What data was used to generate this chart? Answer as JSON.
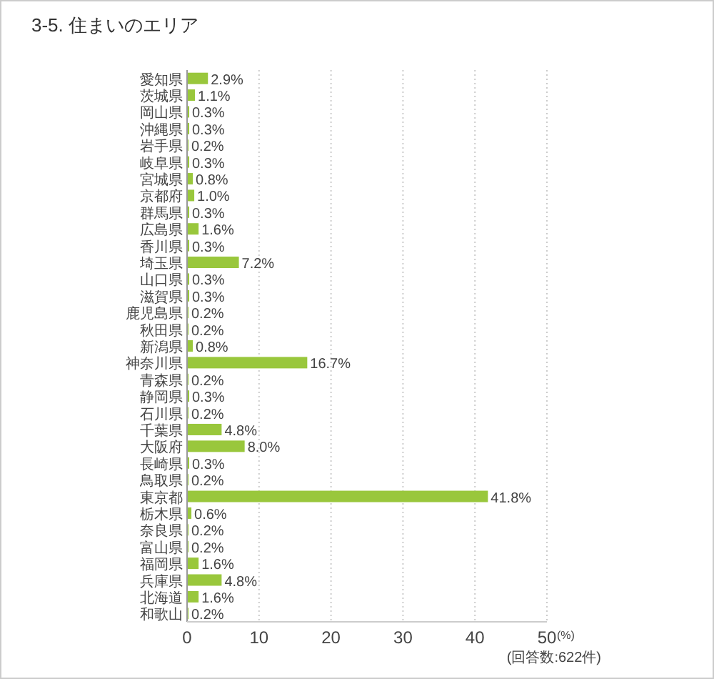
{
  "chart_data": {
    "type": "bar",
    "orientation": "horizontal",
    "title": "3-5. 住まいのエリア",
    "xlabel": "(%)",
    "categories": [
      "愛知県",
      "茨城県",
      "岡山県",
      "沖縄県",
      "岩手県",
      "岐阜県",
      "宮城県",
      "京都府",
      "群馬県",
      "広島県",
      "香川県",
      "埼玉県",
      "山口県",
      "滋賀県",
      "鹿児島県",
      "秋田県",
      "新潟県",
      "神奈川県",
      "青森県",
      "静岡県",
      "石川県",
      "千葉県",
      "大阪府",
      "長崎県",
      "鳥取県",
      "東京都",
      "栃木県",
      "奈良県",
      "富山県",
      "福岡県",
      "兵庫県",
      "北海道",
      "和歌山"
    ],
    "values": [
      2.9,
      1.1,
      0.3,
      0.3,
      0.2,
      0.3,
      0.8,
      1.0,
      0.3,
      1.6,
      0.3,
      7.2,
      0.3,
      0.3,
      0.2,
      0.2,
      0.8,
      16.7,
      0.2,
      0.3,
      0.2,
      4.8,
      8.0,
      0.3,
      0.2,
      41.8,
      0.6,
      0.2,
      0.2,
      1.6,
      4.8,
      1.6,
      0.2
    ],
    "value_labels": [
      "2.9%",
      "1.1%",
      "0.3%",
      "0.3%",
      "0.2%",
      "0.3%",
      "0.8%",
      "1.0%",
      "0.3%",
      "1.6%",
      "0.3%",
      "7.2%",
      "0.3%",
      "0.3%",
      "0.2%",
      "0.2%",
      "0.8%",
      "16.7%",
      "0.2%",
      "0.3%",
      "0.2%",
      "4.8%",
      "8.0%",
      "0.3%",
      "0.2%",
      "41.8%",
      "0.6%",
      "0.2%",
      "0.2%",
      "1.6%",
      "4.8%",
      "1.6%",
      "0.2%"
    ],
    "color": "#99c73c",
    "xlim": [
      0,
      50
    ],
    "xticks": [
      0,
      10,
      20,
      30,
      40,
      50
    ],
    "grid": "x",
    "annotations": [
      "(回答数:622件)"
    ]
  }
}
